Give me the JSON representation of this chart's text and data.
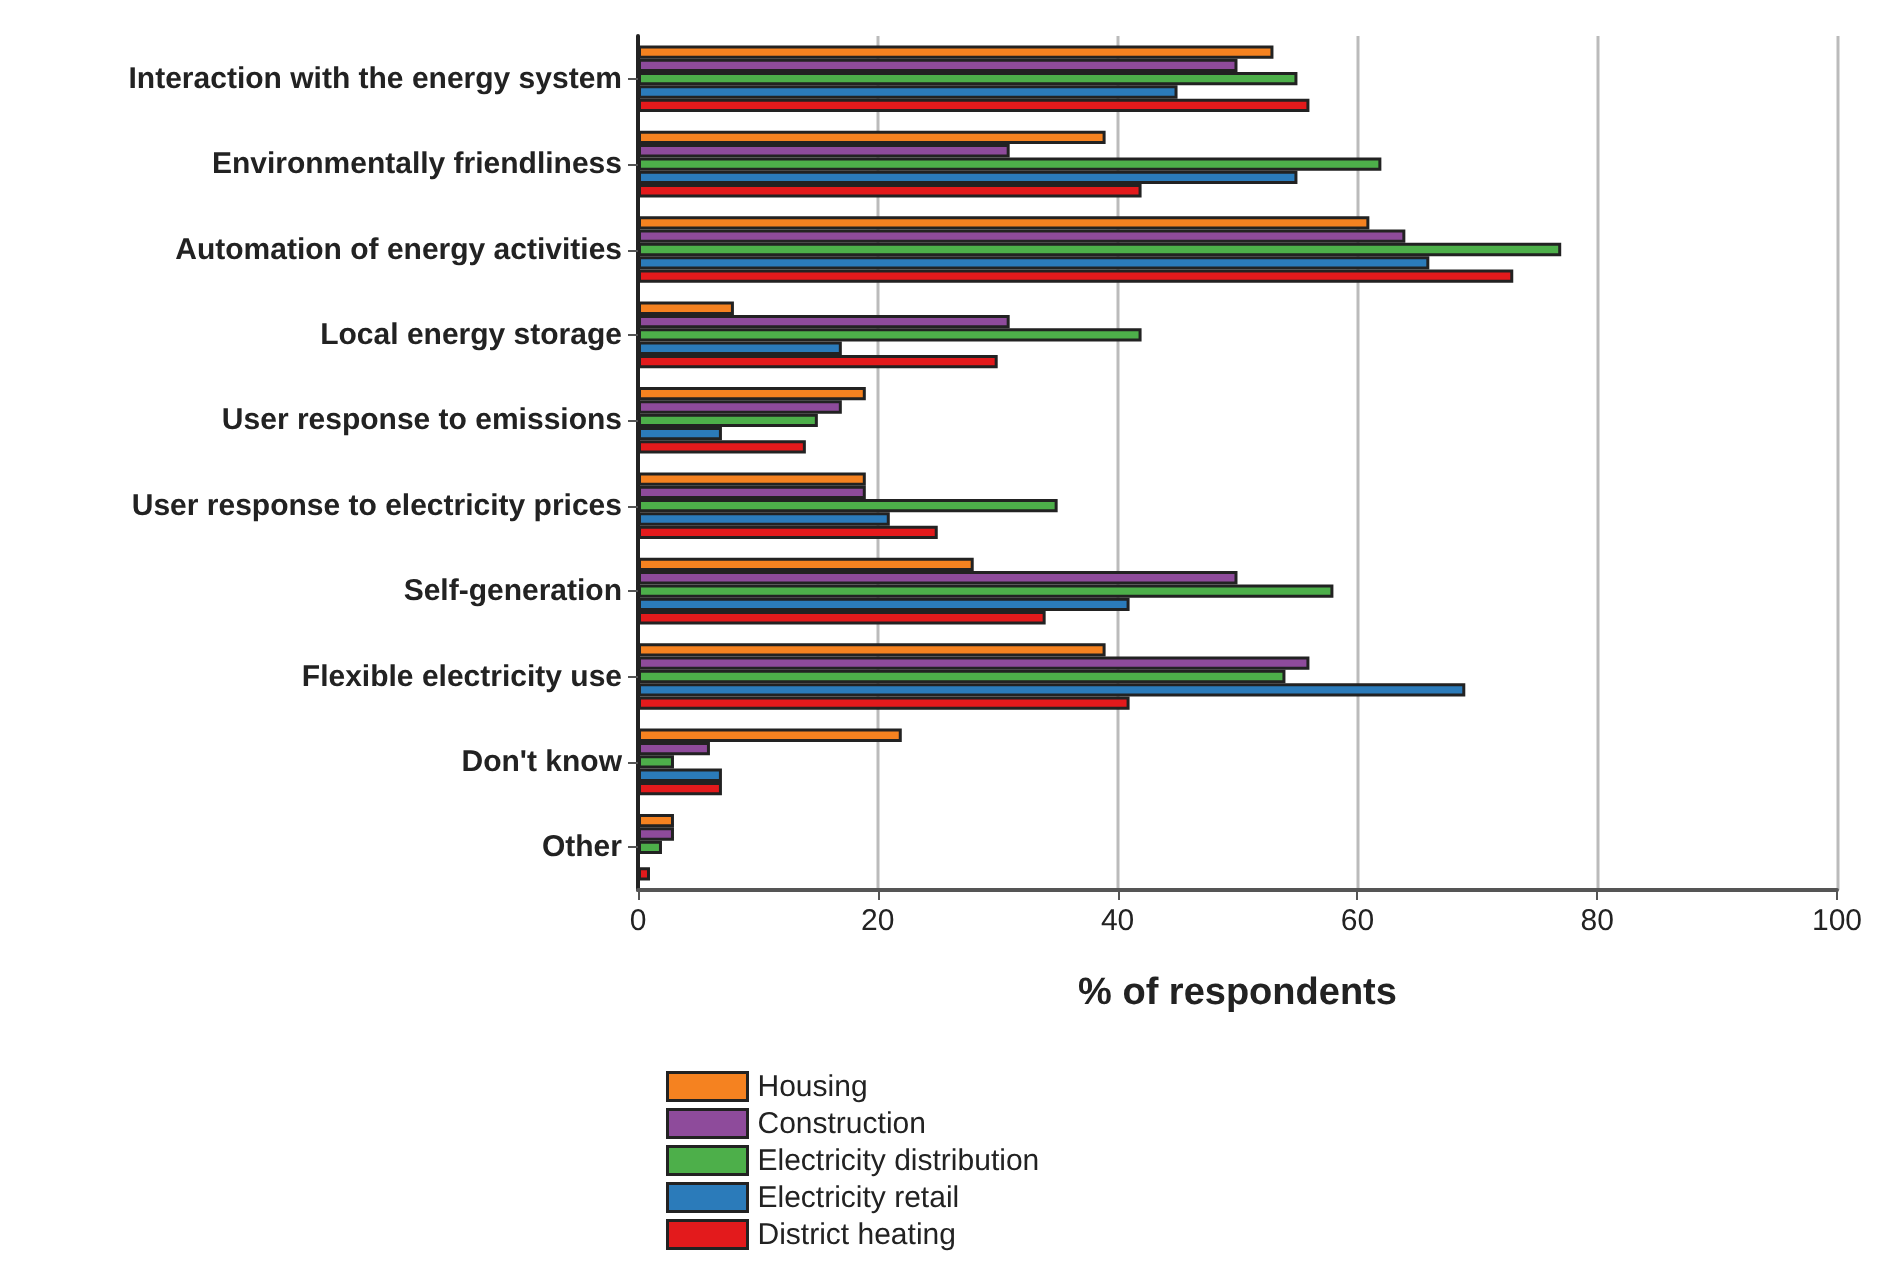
{
  "chart_data": {
    "type": "bar",
    "orientation": "horizontal",
    "xlabel": "% of respondents",
    "categories": [
      "Interaction with the energy system",
      "Environmentally friendliness",
      "Automation of energy activities",
      "Local energy storage",
      "User response to emissions",
      "User response to electricity prices",
      "Self-generation",
      "Flexible electricity use",
      "Don't know",
      "Other"
    ],
    "series": [
      {
        "name": "Housing",
        "color": "#f58220",
        "values": [
          53,
          39,
          61,
          8,
          19,
          19,
          28,
          39,
          22,
          3
        ]
      },
      {
        "name": "Construction",
        "color": "#8e4b9b",
        "values": [
          50,
          31,
          64,
          31,
          17,
          19,
          50,
          56,
          6,
          3
        ]
      },
      {
        "name": "Electricity distribution",
        "color": "#4daf4a",
        "values": [
          55,
          62,
          77,
          42,
          15,
          35,
          58,
          54,
          3,
          2
        ]
      },
      {
        "name": "Electricity retail",
        "color": "#2b7bba",
        "values": [
          45,
          55,
          66,
          17,
          7,
          21,
          41,
          69,
          7,
          null
        ]
      },
      {
        "name": "District heating",
        "color": "#e31a1c",
        "values": [
          56,
          42,
          73,
          30,
          14,
          25,
          34,
          41,
          7,
          1
        ]
      }
    ],
    "xlim": [
      0,
      100
    ],
    "xticks": [
      0,
      20,
      40,
      60,
      80,
      100
    ],
    "grid": "x",
    "legend": "bottom"
  }
}
